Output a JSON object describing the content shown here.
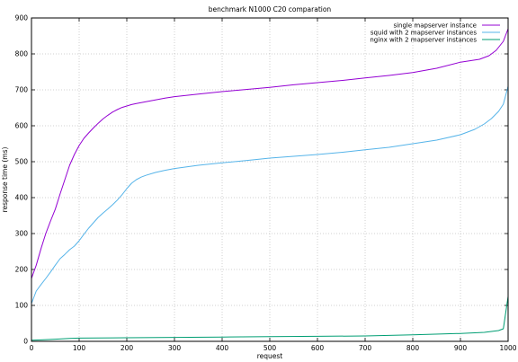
{
  "chart_data": {
    "type": "line",
    "title": "benchmark N1000 C20 comparation",
    "xlabel": "request",
    "ylabel": "response time (ms)",
    "xlim": [
      0,
      1000
    ],
    "ylim": [
      0,
      900
    ],
    "xticks": [
      0,
      100,
      200,
      300,
      400,
      500,
      600,
      700,
      800,
      900,
      1000
    ],
    "yticks": [
      0,
      100,
      200,
      300,
      400,
      500,
      600,
      700,
      800,
      900
    ],
    "grid": true,
    "legend_position": "top-right",
    "series": [
      {
        "name": "single mapserver instance",
        "color": "#9400d3",
        "x": [
          0,
          10,
          20,
          30,
          40,
          50,
          60,
          70,
          80,
          90,
          100,
          110,
          120,
          130,
          140,
          150,
          160,
          170,
          180,
          190,
          200,
          210,
          220,
          240,
          260,
          280,
          300,
          350,
          400,
          450,
          500,
          550,
          600,
          650,
          700,
          750,
          800,
          850,
          900,
          940,
          960,
          975,
          990,
          1000
        ],
        "y": [
          175,
          212,
          258,
          300,
          335,
          368,
          410,
          450,
          490,
          520,
          545,
          565,
          580,
          594,
          607,
          619,
          629,
          638,
          645,
          651,
          655,
          659,
          662,
          667,
          672,
          677,
          681,
          688,
          695,
          701,
          707,
          714,
          720,
          726,
          733,
          740,
          748,
          760,
          777,
          785,
          795,
          810,
          835,
          870
        ]
      },
      {
        "name": "squid with 2 mapserver instances",
        "color": "#56b4e9",
        "x": [
          0,
          10,
          20,
          30,
          40,
          50,
          60,
          70,
          80,
          90,
          100,
          110,
          120,
          130,
          140,
          150,
          160,
          170,
          180,
          190,
          200,
          210,
          220,
          230,
          240,
          260,
          280,
          300,
          350,
          400,
          450,
          500,
          550,
          600,
          650,
          700,
          750,
          800,
          850,
          900,
          930,
          950,
          965,
          980,
          990,
          1000
        ],
        "y": [
          105,
          140,
          158,
          175,
          193,
          212,
          230,
          242,
          255,
          265,
          280,
          298,
          315,
          330,
          345,
          357,
          368,
          380,
          393,
          408,
          425,
          440,
          450,
          457,
          462,
          470,
          476,
          481,
          490,
          497,
          503,
          510,
          515,
          520,
          526,
          533,
          540,
          550,
          560,
          575,
          590,
          605,
          620,
          640,
          660,
          710
        ]
      },
      {
        "name": "nginx with 2 mapserver instances",
        "color": "#009e73",
        "x": [
          0,
          20,
          50,
          80,
          100,
          200,
          300,
          400,
          500,
          600,
          700,
          800,
          900,
          950,
          980,
          990,
          995,
          1000
        ],
        "y": [
          3,
          4,
          6,
          8,
          9,
          10,
          11,
          12,
          13,
          14,
          15,
          18,
          22,
          25,
          30,
          35,
          80,
          125
        ]
      }
    ]
  }
}
